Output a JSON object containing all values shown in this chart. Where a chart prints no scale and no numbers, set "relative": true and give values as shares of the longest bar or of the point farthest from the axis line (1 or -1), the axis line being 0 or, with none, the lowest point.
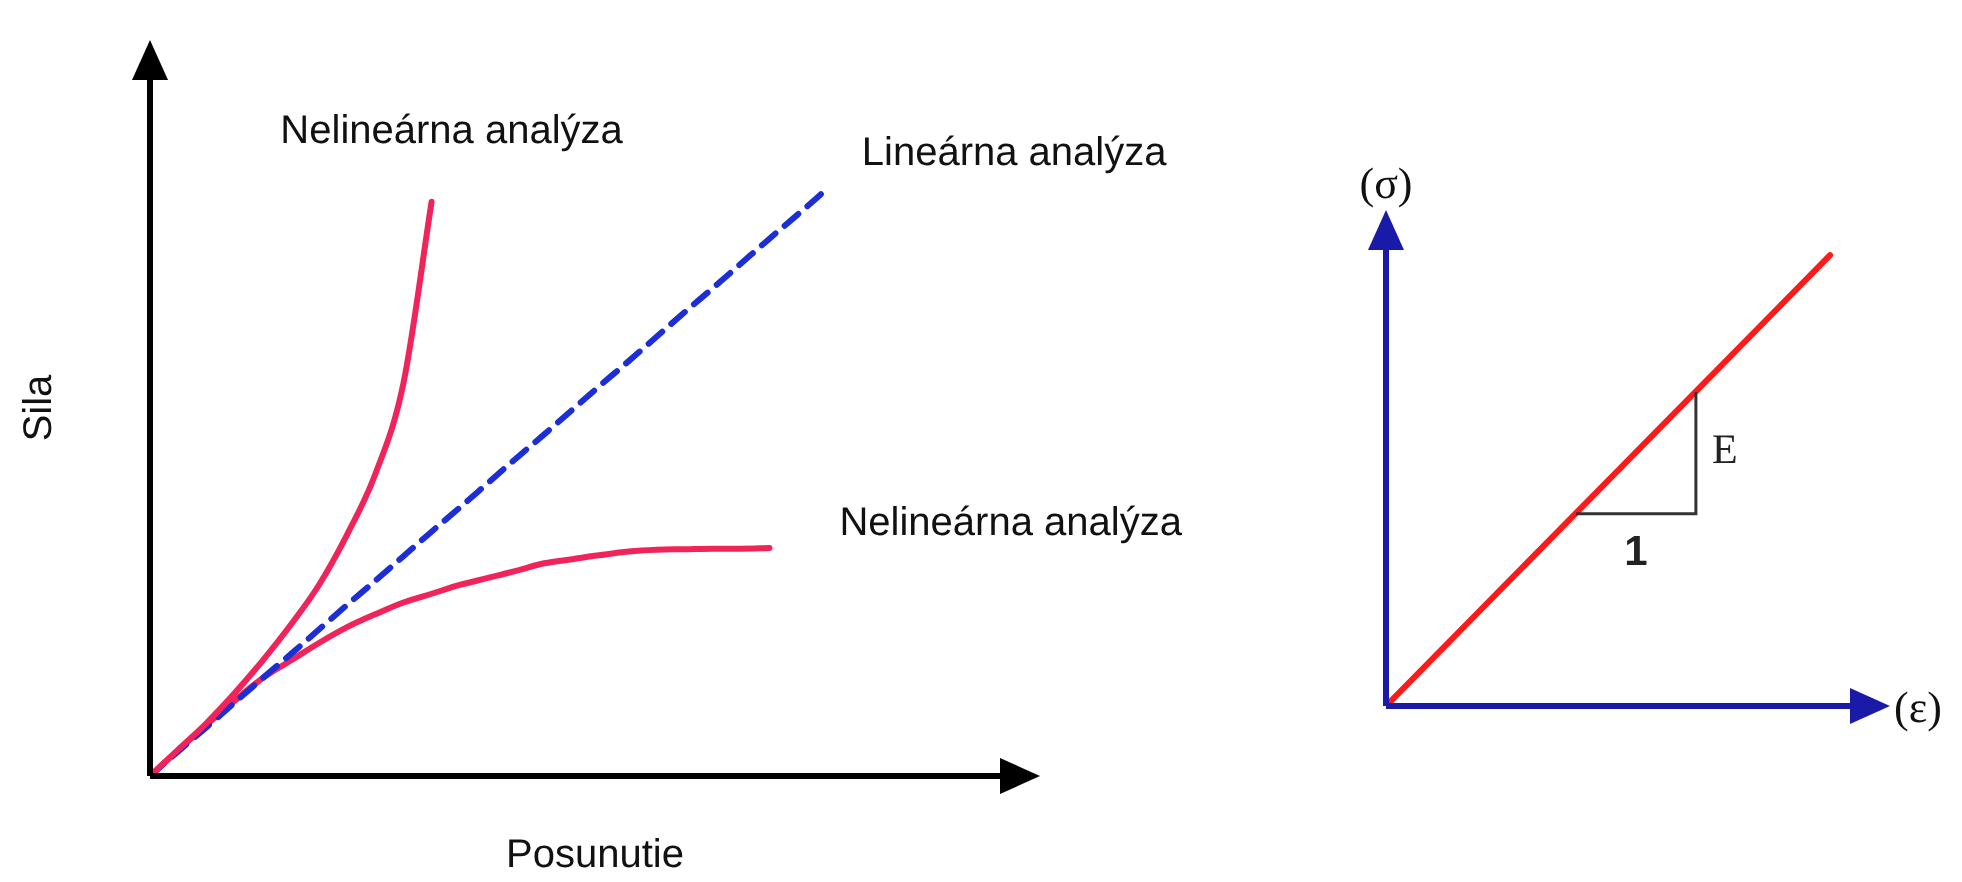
{
  "chart_data": [
    {
      "type": "line",
      "relative": true,
      "xlabel": "Posunutie",
      "ylabel": "Sila",
      "categories": [
        null,
        null,
        null,
        null,
        null,
        null,
        null,
        null,
        null,
        null,
        null,
        null,
        null,
        null,
        null,
        null,
        null,
        null,
        null,
        null,
        null,
        null,
        null,
        null,
        null
      ],
      "series": [
        {
          "name": "Nelineárna analýza",
          "color": "#f0245a",
          "values": [
            0,
            0.045,
            0.09,
            0.141,
            0.197,
            0.258,
            0.326,
            0.412,
            0.515,
            0.67,
            0.98,
            null,
            null,
            null,
            null,
            null,
            null,
            null,
            null,
            null,
            null,
            null,
            null,
            null,
            null
          ]
        },
        {
          "name": "Lineárna analýza",
          "color": "#1c2fd6",
          "line_style": "dashed",
          "values": [
            0,
            0.042,
            0.083,
            0.125,
            0.167,
            0.208,
            0.25,
            0.292,
            0.333,
            0.375,
            0.417,
            0.458,
            0.5,
            0.542,
            0.583,
            0.625,
            0.667,
            0.708,
            0.75,
            0.792,
            0.833,
            0.875,
            0.917,
            0.958,
            1
          ]
        },
        {
          "name": "Nelineárna analýza",
          "color": "#f0245a",
          "values": [
            0,
            0.044,
            0.087,
            0.128,
            0.167,
            0.197,
            0.227,
            0.254,
            0.276,
            0.296,
            0.311,
            0.326,
            0.338,
            0.35,
            0.363,
            0.37,
            0.377,
            0.383,
            0.386,
            0.387,
            0.388,
            0.388,
            0.389,
            null,
            null
          ]
        }
      ]
    },
    {
      "type": "line",
      "relative": true,
      "xlabel": "(ε)",
      "ylabel": "(σ)",
      "annotations": [
        "E",
        "1"
      ],
      "categories": [
        null,
        null
      ],
      "series": [
        {
          "color": "#ff1a1a",
          "values": [
            0,
            1
          ]
        }
      ]
    }
  ]
}
